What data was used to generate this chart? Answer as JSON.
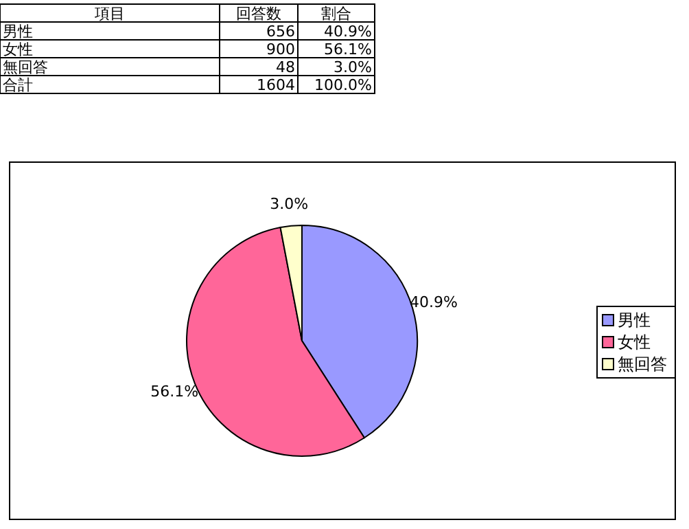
{
  "chart_data": {
    "type": "pie",
    "categories": [
      "男性",
      "女性",
      "無回答"
    ],
    "values": [
      40.9,
      56.1,
      3.0
    ],
    "colors": [
      "#9999ff",
      "#ff6699",
      "#ffffcc"
    ],
    "value_labels": [
      "40.9%",
      "56.1%",
      "3.0%"
    ],
    "legend": "right",
    "annotations": [
      "項目",
      "回答数",
      "割合",
      "656",
      "900",
      "48",
      "合計",
      "1604",
      "100.0%"
    ]
  }
}
